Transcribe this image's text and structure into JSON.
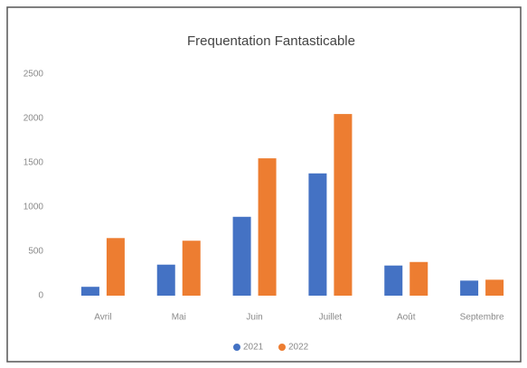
{
  "chart_data": {
    "type": "bar",
    "title": "Frequentation Fantasticable",
    "categories": [
      "Avril",
      "Mai",
      "Juin",
      "Juillet",
      "Août",
      "Septembre"
    ],
    "series": [
      {
        "name": "2021",
        "color": "#4472c4",
        "values": [
          100,
          350,
          890,
          1380,
          340,
          170
        ]
      },
      {
        "name": "2022",
        "color": "#ed7d31",
        "values": [
          650,
          620,
          1550,
          2050,
          380,
          180
        ]
      }
    ],
    "ylim": [
      0,
      2500
    ],
    "yticks": [
      0,
      500,
      1000,
      1500,
      2000,
      2500
    ],
    "grid": false,
    "legend": "bottom"
  }
}
